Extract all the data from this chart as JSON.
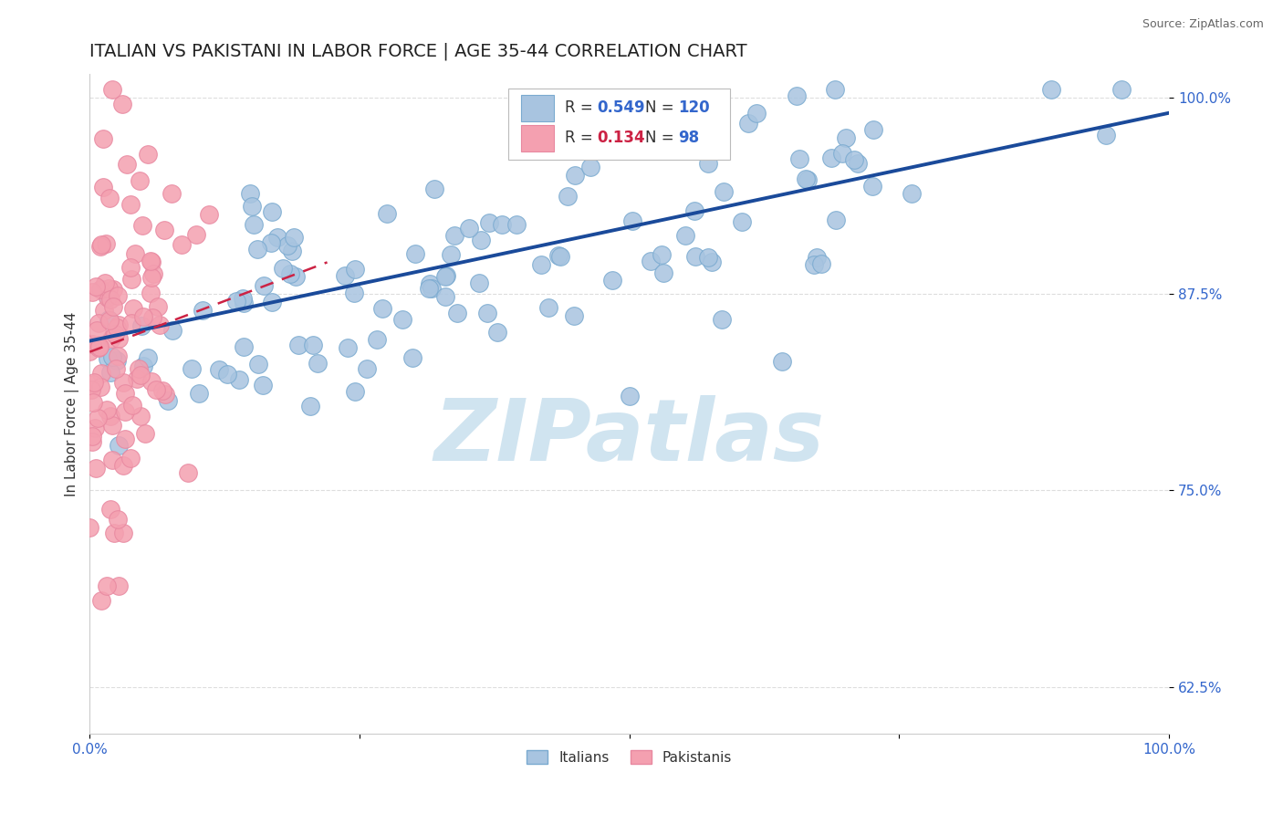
{
  "title": "ITALIAN VS PAKISTANI IN LABOR FORCE | AGE 35-44 CORRELATION CHART",
  "source": "Source: ZipAtlas.com",
  "ylabel": "In Labor Force | Age 35-44",
  "xlim": [
    0.0,
    1.0
  ],
  "ylim": [
    0.595,
    1.015
  ],
  "yticks": [
    0.625,
    0.75,
    0.875,
    1.0
  ],
  "ytick_labels": [
    "62.5%",
    "75.0%",
    "87.5%",
    "100.0%"
  ],
  "xticks": [
    0.0,
    0.25,
    0.5,
    0.75,
    1.0
  ],
  "xtick_labels": [
    "0.0%",
    "",
    "",
    "",
    "100.0%"
  ],
  "italians_R": 0.549,
  "italians_N": 120,
  "pakistanis_R": 0.134,
  "pakistanis_N": 98,
  "italian_color": "#a8c4e0",
  "pakistani_color": "#f4a0b0",
  "italian_edge_color": "#7aaad0",
  "pakistani_edge_color": "#e888a0",
  "italian_line_color": "#1a4a9a",
  "pakistani_line_color": "#cc2244",
  "watermark": "ZIPatlas",
  "watermark_color": "#d0e4f0",
  "background_color": "#ffffff",
  "title_fontsize": 14,
  "axis_label_fontsize": 11,
  "tick_fontsize": 11,
  "legend_fontsize": 12,
  "grid_color": "#dddddd",
  "grid_linestyle": "--",
  "it_line_x0": 0.0,
  "it_line_x1": 1.0,
  "it_line_y0": 0.845,
  "it_line_y1": 0.99,
  "pk_line_x0": 0.0,
  "pk_line_x1": 0.22,
  "pk_line_y0": 0.838,
  "pk_line_y1": 0.895
}
